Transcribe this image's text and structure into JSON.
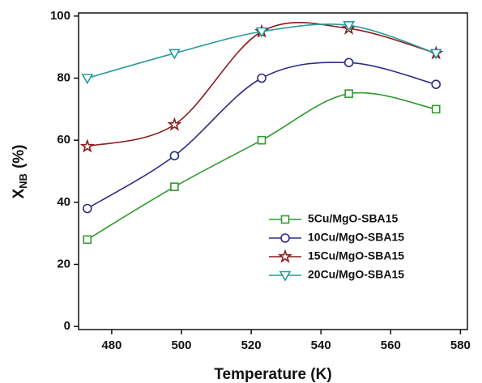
{
  "chart_data": {
    "type": "line",
    "x_label": "Temperature (K)",
    "y_label": {
      "main": "X",
      "sub": "NB",
      "unit": "(%)"
    },
    "x": [
      473,
      498,
      523,
      548,
      573
    ],
    "series": [
      {
        "name": "5Cu/MgO-SBA15",
        "color": "#2e9a2e",
        "marker": "square",
        "values": [
          28,
          45,
          60,
          75,
          70
        ]
      },
      {
        "name": "10Cu/MgO-SBA15",
        "color": "#2b2b88",
        "marker": "circle",
        "values": [
          38,
          55,
          80,
          85,
          78
        ]
      },
      {
        "name": "15Cu/MgO-SBA15",
        "color": "#8b1a1a",
        "marker": "star",
        "values": [
          58,
          65,
          95,
          96,
          88
        ]
      },
      {
        "name": "20Cu/MgO-SBA15",
        "color": "#2a9a9a",
        "marker": "triangle-down",
        "values": [
          80,
          88,
          95,
          97,
          88
        ]
      }
    ],
    "xlim": [
      470.5,
      582
    ],
    "ylim": [
      -1,
      101
    ],
    "xticks": [
      480,
      500,
      520,
      540,
      560,
      580
    ],
    "yticks": [
      0,
      20,
      40,
      60,
      80,
      100
    ],
    "legend": "lower right"
  }
}
